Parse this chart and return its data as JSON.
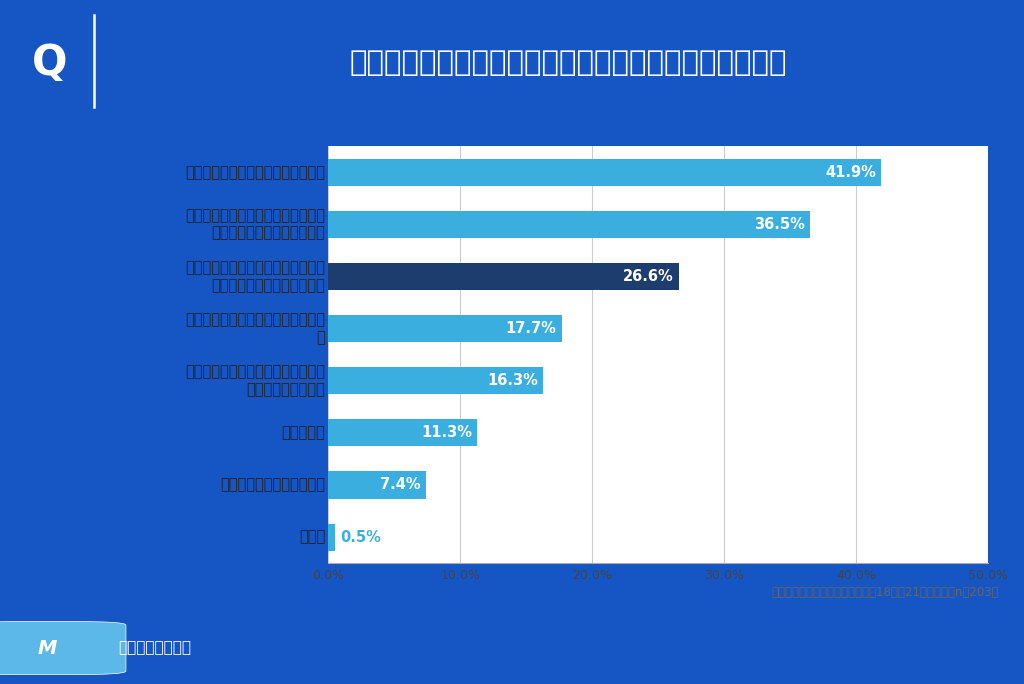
{
  "title": "志望理由書を作成する上で気をつけたことは何ですか？",
  "q_label": "Q",
  "categories": [
    "自分の将来像や目標を具体的に書く",
    "大学の教育方針・アドミッションポ\nリシーとの一致を明確にする",
    "志望動機をエピソードや経験、実績\nに基づいて説得力を持たせる",
    "文章全体の流れや論理構成を意識す\nる",
    "周囲の人からの添削やフィードバッ\nクを積極的に受ける",
    "わからない",
    "誤字脱字や表現に注意する",
    "その他"
  ],
  "values": [
    41.9,
    36.5,
    26.6,
    17.7,
    16.3,
    11.3,
    7.4,
    0.5
  ],
  "bar_colors": [
    "#3baee0",
    "#3baee0",
    "#1c3d6e",
    "#3baee0",
    "#3baee0",
    "#3baee0",
    "#3baee0",
    "#3baee0"
  ],
  "header_bg": "#1655c4",
  "chart_bg": "#ffffff",
  "outer_bg": "#1655c4",
  "xlim": [
    0,
    50
  ],
  "xticks": [
    0,
    10,
    20,
    30,
    40,
    50
  ],
  "xtick_labels": [
    "0.0%",
    "10.0%",
    "20.0%",
    "30.0%",
    "40.0%",
    "50.0%"
  ],
  "footnote": "総合型選抜を受験したことがある18歳～21歳の男女（n＝203）",
  "value_fontsize": 10.5,
  "category_fontsize": 10.5,
  "title_fontsize": 21,
  "bar_height": 0.52
}
